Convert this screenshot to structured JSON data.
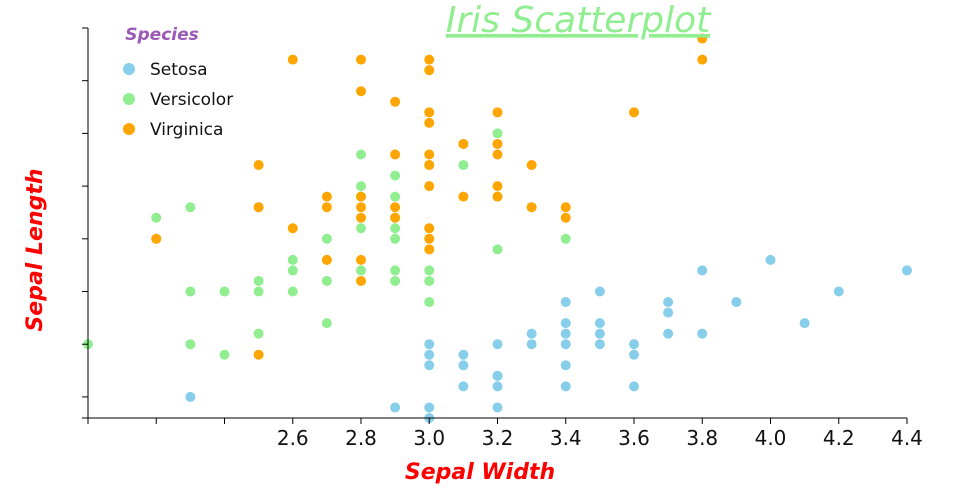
{
  "chart_data": {
    "type": "scatter",
    "title": "Iris Scatterplot",
    "xlabel": "Sepal Width",
    "ylabel": "Sepal Length",
    "xlim": [
      2.0,
      4.4
    ],
    "ylim": [
      4.3,
      8.0
    ],
    "x_ticks": [
      2.0,
      2.2,
      2.4,
      2.6,
      2.8,
      3.0,
      3.2,
      3.4,
      3.6,
      3.8,
      4.0,
      4.2,
      4.4
    ],
    "x_tick_labels": [
      "",
      "",
      "",
      "2.6",
      "2.8",
      "3.0",
      "3.2",
      "3.4",
      "3.6",
      "3.8",
      "4.0",
      "4.2",
      "4.4"
    ],
    "y_ticks": [
      4.3,
      4.5,
      5.0,
      5.5,
      6.0,
      6.5,
      7.0,
      7.5,
      8.0
    ],
    "y_tick_labels": [
      "",
      "",
      "",
      "",
      "",
      "",
      "",
      "",
      ""
    ],
    "legend": {
      "title": "Species",
      "placement": "top-left"
    },
    "series": [
      {
        "name": "Setosa",
        "color": "#87ceeb",
        "points": [
          [
            3.0,
            4.3
          ],
          [
            2.9,
            4.4
          ],
          [
            3.0,
            4.4
          ],
          [
            3.2,
            4.4
          ],
          [
            2.3,
            4.5
          ],
          [
            3.1,
            4.6
          ],
          [
            3.2,
            4.6
          ],
          [
            3.4,
            4.6
          ],
          [
            3.6,
            4.6
          ],
          [
            3.2,
            4.7
          ],
          [
            3.2,
            4.7
          ],
          [
            3.0,
            4.8
          ],
          [
            3.4,
            4.8
          ],
          [
            3.1,
            4.8
          ],
          [
            3.0,
            4.9
          ],
          [
            3.1,
            4.9
          ],
          [
            3.6,
            4.9
          ],
          [
            3.0,
            5.0
          ],
          [
            3.2,
            5.0
          ],
          [
            3.3,
            5.0
          ],
          [
            3.4,
            5.0
          ],
          [
            3.5,
            5.0
          ],
          [
            3.6,
            5.0
          ],
          [
            3.3,
            5.1
          ],
          [
            3.4,
            5.1
          ],
          [
            3.5,
            5.1
          ],
          [
            3.7,
            5.1
          ],
          [
            3.8,
            5.1
          ],
          [
            3.4,
            5.2
          ],
          [
            3.5,
            5.2
          ],
          [
            4.1,
            5.2
          ],
          [
            3.7,
            5.3
          ],
          [
            3.4,
            5.4
          ],
          [
            3.7,
            5.4
          ],
          [
            3.9,
            5.4
          ],
          [
            3.5,
            5.5
          ],
          [
            4.2,
            5.5
          ],
          [
            3.8,
            5.7
          ],
          [
            4.4,
            5.7
          ],
          [
            4.0,
            5.8
          ]
        ]
      },
      {
        "name": "Versicolor",
        "color": "#90ee90",
        "points": [
          [
            2.0,
            5.0
          ],
          [
            2.3,
            5.0
          ],
          [
            2.4,
            4.9
          ],
          [
            2.5,
            5.1
          ],
          [
            2.3,
            5.5
          ],
          [
            2.4,
            5.5
          ],
          [
            2.5,
            5.5
          ],
          [
            2.6,
            5.5
          ],
          [
            3.0,
            5.4
          ],
          [
            2.7,
            5.2
          ],
          [
            2.5,
            5.6
          ],
          [
            2.7,
            5.6
          ],
          [
            2.9,
            5.6
          ],
          [
            3.0,
            5.6
          ],
          [
            2.6,
            5.7
          ],
          [
            2.8,
            5.7
          ],
          [
            2.9,
            5.7
          ],
          [
            3.0,
            5.7
          ],
          [
            2.6,
            5.8
          ],
          [
            2.7,
            5.8
          ],
          [
            2.2,
            6.0
          ],
          [
            2.7,
            6.0
          ],
          [
            2.9,
            6.0
          ],
          [
            3.2,
            5.9
          ],
          [
            3.4,
            6.0
          ],
          [
            2.2,
            6.2
          ],
          [
            2.8,
            6.1
          ],
          [
            2.9,
            6.1
          ],
          [
            3.0,
            6.1
          ],
          [
            2.3,
            6.3
          ],
          [
            2.5,
            6.3
          ],
          [
            2.9,
            6.2
          ],
          [
            3.3,
            6.3
          ],
          [
            2.8,
            6.4
          ],
          [
            2.9,
            6.4
          ],
          [
            3.2,
            6.4
          ],
          [
            2.8,
            6.5
          ],
          [
            2.9,
            6.6
          ],
          [
            3.0,
            6.7
          ],
          [
            3.1,
            6.7
          ],
          [
            2.8,
            6.8
          ],
          [
            3.1,
            6.9
          ],
          [
            3.2,
            7.0
          ]
        ]
      },
      {
        "name": "Virginica",
        "color": "#ffa500",
        "points": [
          [
            2.5,
            4.9
          ],
          [
            2.8,
            5.6
          ],
          [
            2.7,
            5.8
          ],
          [
            2.8,
            5.8
          ],
          [
            3.0,
            5.9
          ],
          [
            2.2,
            6.0
          ],
          [
            3.0,
            6.0
          ],
          [
            2.6,
            6.1
          ],
          [
            3.0,
            6.1
          ],
          [
            2.5,
            6.3
          ],
          [
            2.8,
            6.3
          ],
          [
            2.9,
            6.3
          ],
          [
            2.7,
            6.4
          ],
          [
            2.8,
            6.4
          ],
          [
            2.5,
            6.7
          ],
          [
            3.0,
            6.5
          ],
          [
            3.2,
            6.4
          ],
          [
            2.8,
            6.2
          ],
          [
            2.9,
            6.2
          ],
          [
            2.7,
            6.3
          ],
          [
            3.3,
            6.3
          ],
          [
            3.4,
            6.3
          ],
          [
            3.4,
            6.2
          ],
          [
            3.2,
            6.5
          ],
          [
            3.1,
            6.4
          ],
          [
            3.1,
            6.9
          ],
          [
            2.9,
            6.8
          ],
          [
            3.0,
            6.7
          ],
          [
            3.2,
            6.8
          ],
          [
            3.3,
            6.7
          ],
          [
            3.0,
            6.8
          ],
          [
            3.2,
            6.9
          ],
          [
            3.0,
            7.1
          ],
          [
            3.0,
            7.2
          ],
          [
            3.2,
            7.2
          ],
          [
            3.6,
            7.2
          ],
          [
            2.9,
            7.3
          ],
          [
            2.8,
            7.4
          ],
          [
            3.0,
            7.6
          ],
          [
            2.6,
            7.7
          ],
          [
            2.8,
            7.7
          ],
          [
            3.0,
            7.7
          ],
          [
            3.8,
            7.7
          ],
          [
            3.8,
            7.9
          ]
        ]
      }
    ]
  }
}
